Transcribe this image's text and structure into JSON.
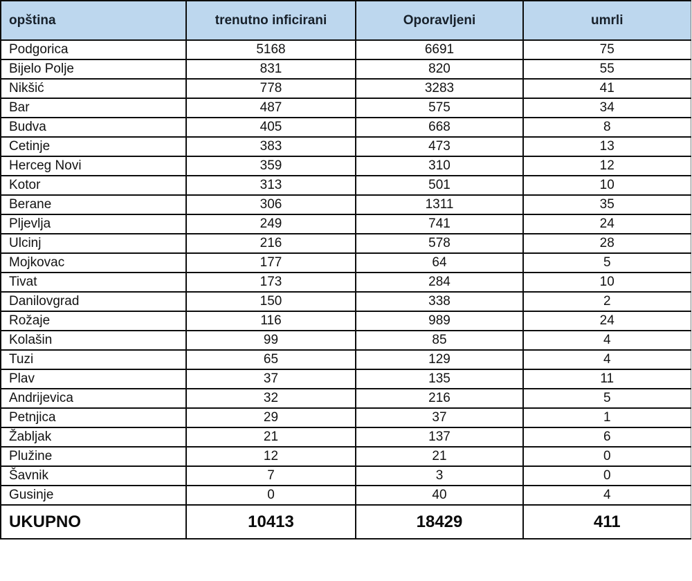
{
  "colors": {
    "header_bg": "#bdd7ee",
    "border": "#0d0d0d",
    "header_text": "#17202a",
    "body_text": "#121212"
  },
  "chart_data": {
    "type": "table",
    "columns": [
      "opština",
      "trenutno inficirani",
      "Oporavljeni",
      "umrli"
    ],
    "rows": [
      [
        "Podgorica",
        5168,
        6691,
        75
      ],
      [
        "Bijelo Polje",
        831,
        820,
        55
      ],
      [
        "Nikšić",
        778,
        3283,
        41
      ],
      [
        "Bar",
        487,
        575,
        34
      ],
      [
        "Budva",
        405,
        668,
        8
      ],
      [
        "Cetinje",
        383,
        473,
        13
      ],
      [
        "Herceg Novi",
        359,
        310,
        12
      ],
      [
        "Kotor",
        313,
        501,
        10
      ],
      [
        "Berane",
        306,
        1311,
        35
      ],
      [
        "Pljevlja",
        249,
        741,
        24
      ],
      [
        "Ulcinj",
        216,
        578,
        28
      ],
      [
        "Mojkovac",
        177,
        64,
        5
      ],
      [
        "Tivat",
        173,
        284,
        10
      ],
      [
        "Danilovgrad",
        150,
        338,
        2
      ],
      [
        "Rožaje",
        116,
        989,
        24
      ],
      [
        "Kolašin",
        99,
        85,
        4
      ],
      [
        "Tuzi",
        65,
        129,
        4
      ],
      [
        "Plav",
        37,
        135,
        11
      ],
      [
        "Andrijevica",
        32,
        216,
        5
      ],
      [
        "Petnjica",
        29,
        37,
        1
      ],
      [
        "Žabljak",
        21,
        137,
        6
      ],
      [
        "Plužine",
        12,
        21,
        0
      ],
      [
        "Šavnik",
        7,
        3,
        0
      ],
      [
        "Gusinje",
        0,
        40,
        4
      ]
    ],
    "total_row": [
      "UKUPNO",
      10413,
      18429,
      411
    ]
  }
}
